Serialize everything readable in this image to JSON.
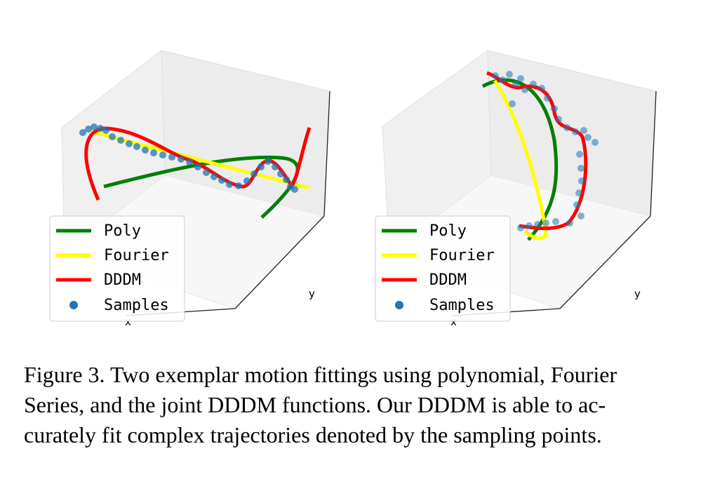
{
  "panels": [
    {
      "legend": {
        "items": [
          {
            "label": "Poly",
            "color": "#008000",
            "kind": "line"
          },
          {
            "label": "Fourier",
            "color": "#ffff00",
            "kind": "line"
          },
          {
            "label": "DDDM",
            "color": "#ff0000",
            "kind": "line"
          },
          {
            "label": "Samples",
            "color": "#1f77b4",
            "kind": "dot"
          }
        ]
      },
      "axis_labels": {
        "x": "x",
        "y": "y"
      }
    },
    {
      "legend": {
        "items": [
          {
            "label": "Poly",
            "color": "#008000",
            "kind": "line"
          },
          {
            "label": "Fourier",
            "color": "#ffff00",
            "kind": "line"
          },
          {
            "label": "DDDM",
            "color": "#ff0000",
            "kind": "line"
          },
          {
            "label": "Samples",
            "color": "#1f77b4",
            "kind": "dot"
          }
        ]
      },
      "axis_labels": {
        "x": "x",
        "y": "y"
      }
    }
  ],
  "caption": {
    "lines": [
      "Figure 3. Two exemplar motion fittings using polynomial, Fourier",
      "Series, and the joint DDDM functions. Our DDDM is able to ac-",
      "curately fit complex trajectories denoted by the sampling points."
    ]
  }
}
